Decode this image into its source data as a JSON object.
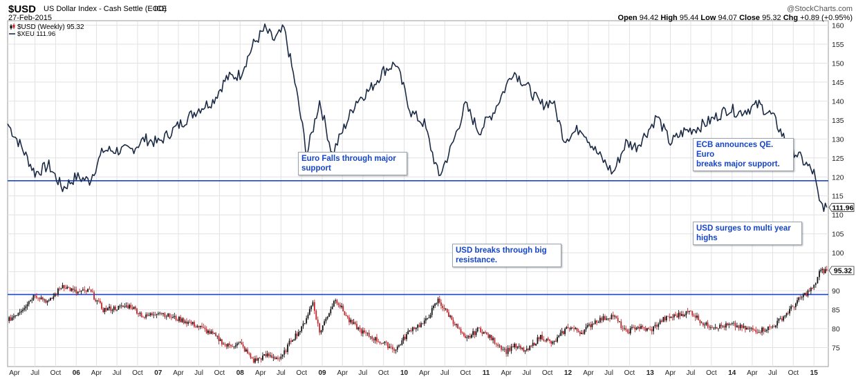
{
  "header": {
    "symbol": "$USD",
    "name": "US Dollar Index - Cash Settle (EOD)",
    "exchange": "ICE",
    "date": "27-Feb-2015",
    "watermark": "@StockCharts.com",
    "ohlc": {
      "open_label": "Open",
      "open": "94.42",
      "high_label": "High",
      "high": "95.44",
      "low_label": "Low",
      "low": "94.07",
      "close_label": "Close",
      "close": "95.32",
      "chg_label": "Chg",
      "chg": "+0.89 (+0.95%)"
    }
  },
  "legend": [
    {
      "name": "$USD (Weekly) 95.32",
      "icon": "candlestick-icon"
    },
    {
      "name": "$XEU 111.96",
      "icon": "line-icon"
    }
  ],
  "annotations": [
    {
      "id": "euro-falls",
      "lines": [
        "Euro Falls through major",
        "support"
      ]
    },
    {
      "id": "ecb-qe",
      "lines": [
        "ECB announces QE. Euro",
        "breaks major support."
      ]
    },
    {
      "id": "usd-breaks",
      "lines": [
        "USD breaks through big",
        "resistance."
      ]
    },
    {
      "id": "usd-surges",
      "lines": [
        "USD surges to multi year",
        "highs"
      ]
    }
  ],
  "colors": {
    "line": "#1b2a44",
    "up": "#111111",
    "down": "#c0262b",
    "hline": "#1a45c8",
    "grid": "#e2e2e2"
  },
  "chart_data": {
    "type": "line",
    "yaxis": {
      "side": "right",
      "ticks": [
        75,
        80,
        85,
        90,
        95,
        100,
        105,
        110,
        115,
        120,
        125,
        130,
        135,
        140,
        145,
        150,
        155,
        160
      ],
      "range": [
        70,
        161
      ]
    },
    "xaxis": {
      "range": [
        "2005-03-01",
        "2015-03-06"
      ],
      "ticks": [
        {
          "label": "Apr",
          "date": "2005-04-01"
        },
        {
          "label": "Jul",
          "date": "2005-07-01"
        },
        {
          "label": "Oct",
          "date": "2005-10-01"
        },
        {
          "label": "06",
          "date": "2006-01-01",
          "bold": true
        },
        {
          "label": "Apr",
          "date": "2006-04-01"
        },
        {
          "label": "Jul",
          "date": "2006-07-01"
        },
        {
          "label": "Oct",
          "date": "2006-10-01"
        },
        {
          "label": "07",
          "date": "2007-01-01",
          "bold": true
        },
        {
          "label": "Apr",
          "date": "2007-04-01"
        },
        {
          "label": "Jul",
          "date": "2007-07-01"
        },
        {
          "label": "Oct",
          "date": "2007-10-01"
        },
        {
          "label": "08",
          "date": "2008-01-01",
          "bold": true
        },
        {
          "label": "Apr",
          "date": "2008-04-01"
        },
        {
          "label": "Jul",
          "date": "2008-07-01"
        },
        {
          "label": "Oct",
          "date": "2008-10-01"
        },
        {
          "label": "09",
          "date": "2009-01-01",
          "bold": true
        },
        {
          "label": "Apr",
          "date": "2009-04-01"
        },
        {
          "label": "Jul",
          "date": "2009-07-01"
        },
        {
          "label": "Oct",
          "date": "2009-10-01"
        },
        {
          "label": "10",
          "date": "2010-01-01",
          "bold": true
        },
        {
          "label": "Apr",
          "date": "2010-04-01"
        },
        {
          "label": "Jul",
          "date": "2010-07-01"
        },
        {
          "label": "Oct",
          "date": "2010-10-01"
        },
        {
          "label": "11",
          "date": "2011-01-01",
          "bold": true
        },
        {
          "label": "Apr",
          "date": "2011-04-01"
        },
        {
          "label": "Jul",
          "date": "2011-07-01"
        },
        {
          "label": "Oct",
          "date": "2011-10-01"
        },
        {
          "label": "12",
          "date": "2012-01-01",
          "bold": true
        },
        {
          "label": "Apr",
          "date": "2012-04-01"
        },
        {
          "label": "Jul",
          "date": "2012-07-01"
        },
        {
          "label": "Oct",
          "date": "2012-10-01"
        },
        {
          "label": "13",
          "date": "2013-01-01",
          "bold": true
        },
        {
          "label": "Apr",
          "date": "2013-04-01"
        },
        {
          "label": "Jul",
          "date": "2013-07-01"
        },
        {
          "label": "Oct",
          "date": "2013-10-01"
        },
        {
          "label": "14",
          "date": "2014-01-01",
          "bold": true
        },
        {
          "label": "Apr",
          "date": "2014-04-01"
        },
        {
          "label": "Jul",
          "date": "2014-07-01"
        },
        {
          "label": "Oct",
          "date": "2014-10-01"
        },
        {
          "label": "15",
          "date": "2015-01-01",
          "bold": true
        }
      ]
    },
    "horizontal_lines": [
      119,
      89
    ],
    "last_labels": [
      {
        "series": "$XEU",
        "value": 111.96,
        "text": "111.96"
      },
      {
        "series": "$USD",
        "value": 95.32,
        "text": "95.32"
      }
    ],
    "series": [
      {
        "name": "$XEU",
        "kind": "line",
        "points": [
          [
            "2005-03-01",
            134
          ],
          [
            "2005-05-01",
            128
          ],
          [
            "2005-07-01",
            121
          ],
          [
            "2005-09-01",
            123
          ],
          [
            "2005-11-01",
            117
          ],
          [
            "2006-01-01",
            120
          ],
          [
            "2006-03-01",
            119
          ],
          [
            "2006-05-01",
            127
          ],
          [
            "2006-07-01",
            127
          ],
          [
            "2006-09-01",
            127
          ],
          [
            "2006-11-01",
            130
          ],
          [
            "2007-01-01",
            129
          ],
          [
            "2007-03-01",
            132
          ],
          [
            "2007-05-01",
            135
          ],
          [
            "2007-07-01",
            138
          ],
          [
            "2007-09-01",
            140
          ],
          [
            "2007-11-01",
            146
          ],
          [
            "2008-01-01",
            147
          ],
          [
            "2008-03-01",
            155
          ],
          [
            "2008-04-20",
            159
          ],
          [
            "2008-06-01",
            156
          ],
          [
            "2008-07-15",
            159
          ],
          [
            "2008-09-01",
            145
          ],
          [
            "2008-10-25",
            126
          ],
          [
            "2008-12-20",
            140
          ],
          [
            "2009-02-15",
            126
          ],
          [
            "2009-04-01",
            132
          ],
          [
            "2009-06-01",
            140
          ],
          [
            "2009-08-01",
            143
          ],
          [
            "2009-10-01",
            148
          ],
          [
            "2009-11-25",
            150
          ],
          [
            "2010-02-01",
            137
          ],
          [
            "2010-04-01",
            134
          ],
          [
            "2010-06-05",
            120
          ],
          [
            "2010-08-01",
            128
          ],
          [
            "2010-10-01",
            139
          ],
          [
            "2010-12-01",
            132
          ],
          [
            "2011-02-01",
            137
          ],
          [
            "2011-04-01",
            144
          ],
          [
            "2011-05-01",
            148
          ],
          [
            "2011-07-01",
            144
          ],
          [
            "2011-09-01",
            139
          ],
          [
            "2011-10-25",
            140
          ],
          [
            "2011-12-15",
            130
          ],
          [
            "2012-03-01",
            133
          ],
          [
            "2012-05-01",
            127
          ],
          [
            "2012-07-20",
            121
          ],
          [
            "2012-09-15",
            129
          ],
          [
            "2012-11-01",
            128
          ],
          [
            "2013-01-01",
            133
          ],
          [
            "2013-02-01",
            136
          ],
          [
            "2013-04-01",
            129
          ],
          [
            "2013-06-01",
            132
          ],
          [
            "2013-08-01",
            133
          ],
          [
            "2013-10-01",
            135
          ],
          [
            "2013-12-15",
            138
          ],
          [
            "2014-02-01",
            137
          ],
          [
            "2014-05-01",
            139
          ],
          [
            "2014-07-01",
            136
          ],
          [
            "2014-09-01",
            129
          ],
          [
            "2014-11-01",
            125
          ],
          [
            "2015-01-01",
            121
          ],
          [
            "2015-01-25",
            113
          ],
          [
            "2015-02-27",
            111.96
          ]
        ]
      },
      {
        "name": "$USD",
        "kind": "candlestick",
        "points": [
          [
            "2005-03-01",
            82
          ],
          [
            "2005-05-01",
            85
          ],
          [
            "2005-07-01",
            89
          ],
          [
            "2005-09-01",
            87
          ],
          [
            "2005-11-01",
            91.5
          ],
          [
            "2006-01-01",
            89.5
          ],
          [
            "2006-03-01",
            90
          ],
          [
            "2006-05-01",
            85
          ],
          [
            "2006-07-01",
            85.5
          ],
          [
            "2006-09-01",
            86
          ],
          [
            "2006-11-01",
            83
          ],
          [
            "2007-01-01",
            84.5
          ],
          [
            "2007-03-01",
            83
          ],
          [
            "2007-05-01",
            82
          ],
          [
            "2007-07-01",
            80.5
          ],
          [
            "2007-09-01",
            78.5
          ],
          [
            "2007-11-01",
            75.5
          ],
          [
            "2008-01-01",
            76
          ],
          [
            "2008-03-01",
            71.5
          ],
          [
            "2008-05-01",
            73
          ],
          [
            "2008-07-01",
            72
          ],
          [
            "2008-08-15",
            77
          ],
          [
            "2008-10-01",
            80
          ],
          [
            "2008-11-20",
            87
          ],
          [
            "2008-12-20",
            79
          ],
          [
            "2009-03-01",
            88
          ],
          [
            "2009-05-01",
            82
          ],
          [
            "2009-07-01",
            79
          ],
          [
            "2009-09-01",
            77
          ],
          [
            "2009-11-25",
            74.5
          ],
          [
            "2010-02-01",
            80
          ],
          [
            "2010-04-01",
            81.5
          ],
          [
            "2010-06-01",
            87.5
          ],
          [
            "2010-08-01",
            82.5
          ],
          [
            "2010-10-01",
            77
          ],
          [
            "2010-12-01",
            80
          ],
          [
            "2011-02-01",
            77
          ],
          [
            "2011-04-01",
            74
          ],
          [
            "2011-05-01",
            75.5
          ],
          [
            "2011-07-01",
            74
          ],
          [
            "2011-09-01",
            78
          ],
          [
            "2011-10-25",
            76
          ],
          [
            "2012-01-01",
            80.5
          ],
          [
            "2012-03-01",
            79
          ],
          [
            "2012-05-01",
            82
          ],
          [
            "2012-07-20",
            83.5
          ],
          [
            "2012-09-15",
            79
          ],
          [
            "2012-11-01",
            80.5
          ],
          [
            "2013-01-01",
            79.5
          ],
          [
            "2013-03-01",
            82.5
          ],
          [
            "2013-05-01",
            83.5
          ],
          [
            "2013-07-01",
            84.5
          ],
          [
            "2013-09-01",
            81
          ],
          [
            "2013-11-01",
            80.5
          ],
          [
            "2014-01-01",
            81
          ],
          [
            "2014-03-01",
            80
          ],
          [
            "2014-05-01",
            79.5
          ],
          [
            "2014-07-01",
            80.5
          ],
          [
            "2014-09-01",
            84
          ],
          [
            "2014-11-01",
            88
          ],
          [
            "2015-01-01",
            91
          ],
          [
            "2015-01-25",
            95
          ],
          [
            "2015-02-27",
            95.32
          ]
        ]
      }
    ]
  }
}
